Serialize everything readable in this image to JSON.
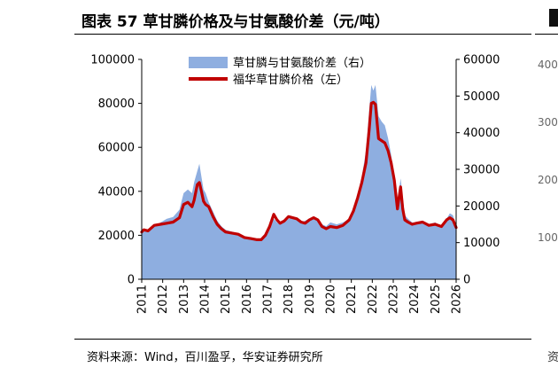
{
  "title": "图表 57 草甘膦价格及与甘氨酸价差（元/吨）",
  "source": "资料来源：Wind，百川盈孚，华安证券研究所",
  "colors": {
    "spread_fill": "#8eaee0",
    "price_line": "#c00000"
  },
  "neighbor": {
    "ticks": [
      "400",
      "300",
      "200",
      "100"
    ],
    "source_fragment": "资"
  },
  "chart_data": {
    "type": "area",
    "x_ticks": [
      "2011",
      "2012",
      "2013",
      "2014",
      "2015",
      "2016",
      "2017",
      "2018",
      "2019",
      "2020",
      "2021",
      "2022",
      "2023",
      "2024",
      "2025",
      "2026"
    ],
    "xlim": [
      2011,
      2026
    ],
    "y_left": {
      "ticks": [
        "0",
        "20000",
        "40000",
        "60000",
        "80000",
        "100000"
      ],
      "lim": [
        0,
        100000
      ]
    },
    "y_right": {
      "ticks": [
        "0",
        "10000",
        "20000",
        "30000",
        "40000",
        "50000",
        "60000"
      ],
      "lim": [
        0,
        60000
      ]
    },
    "grid": false,
    "legend_position": "top-center",
    "series": [
      {
        "name": "草甘膦与甘氨酸价差（右）",
        "kind": "area",
        "axis": "right",
        "x": [
          2011.0,
          2011.1,
          2011.3,
          2011.6,
          2011.9,
          2012.2,
          2012.5,
          2012.8,
          2013.0,
          2013.2,
          2013.4,
          2013.5,
          2013.65,
          2013.75,
          2013.85,
          2013.95,
          2014.05,
          2014.2,
          2014.4,
          2014.6,
          2014.8,
          2015.0,
          2015.3,
          2015.6,
          2015.9,
          2016.2,
          2016.5,
          2016.7,
          2016.9,
          2017.1,
          2017.3,
          2017.45,
          2017.6,
          2017.8,
          2018.0,
          2018.2,
          2018.4,
          2018.6,
          2018.8,
          2019.0,
          2019.2,
          2019.4,
          2019.6,
          2019.8,
          2020.0,
          2020.3,
          2020.6,
          2020.9,
          2021.1,
          2021.3,
          2021.5,
          2021.7,
          2021.85,
          2021.95,
          2022.05,
          2022.15,
          2022.3,
          2022.45,
          2022.6,
          2022.75,
          2022.9,
          2023.05,
          2023.2,
          2023.35,
          2023.45,
          2023.55,
          2023.7,
          2023.9,
          2024.1,
          2024.4,
          2024.7,
          2025.0,
          2025.3,
          2025.55,
          2025.7,
          2025.85,
          2026.0
        ],
        "values": [
          12500,
          13000,
          13500,
          14500,
          15500,
          16500,
          17000,
          19000,
          23500,
          24500,
          23500,
          26500,
          29500,
          31500,
          28000,
          24500,
          23500,
          21000,
          18500,
          16000,
          14500,
          13500,
          13000,
          12500,
          11500,
          11000,
          10500,
          10500,
          11500,
          13500,
          16500,
          15500,
          15000,
          15500,
          16500,
          17000,
          16500,
          15500,
          16000,
          16500,
          17000,
          16500,
          15000,
          14500,
          15500,
          15000,
          15500,
          16500,
          19000,
          23000,
          28000,
          35000,
          46000,
          53000,
          51500,
          53000,
          44500,
          43000,
          42000,
          38500,
          34000,
          28000,
          21000,
          27500,
          22500,
          17500,
          16500,
          15500,
          15500,
          16000,
          15000,
          15500,
          14500,
          16500,
          18000,
          17500,
          14500
        ]
      },
      {
        "name": "福华草甘膦价格（左）",
        "kind": "line",
        "axis": "left",
        "x": [
          2011.0,
          2011.1,
          2011.3,
          2011.6,
          2011.9,
          2012.2,
          2012.5,
          2012.8,
          2013.0,
          2013.2,
          2013.4,
          2013.5,
          2013.65,
          2013.75,
          2013.85,
          2013.95,
          2014.05,
          2014.2,
          2014.4,
          2014.6,
          2014.8,
          2015.0,
          2015.3,
          2015.6,
          2015.9,
          2016.2,
          2016.5,
          2016.7,
          2016.9,
          2017.1,
          2017.3,
          2017.45,
          2017.6,
          2017.8,
          2018.0,
          2018.2,
          2018.4,
          2018.6,
          2018.8,
          2019.0,
          2019.2,
          2019.4,
          2019.6,
          2019.8,
          2020.0,
          2020.3,
          2020.6,
          2020.9,
          2021.1,
          2021.3,
          2021.5,
          2021.7,
          2021.85,
          2021.95,
          2022.05,
          2022.15,
          2022.3,
          2022.45,
          2022.6,
          2022.75,
          2022.9,
          2023.05,
          2023.2,
          2023.35,
          2023.45,
          2023.55,
          2023.7,
          2023.9,
          2024.1,
          2024.4,
          2024.7,
          2025.0,
          2025.3,
          2025.55,
          2025.7,
          2025.85,
          2026.0
        ],
        "values": [
          21500,
          22500,
          22000,
          24500,
          25000,
          25500,
          26000,
          28000,
          34000,
          35000,
          33000,
          36000,
          43000,
          44000,
          40000,
          35500,
          34000,
          33000,
          28500,
          25000,
          23000,
          21500,
          21000,
          20500,
          19000,
          18500,
          18000,
          18000,
          20000,
          24000,
          29500,
          27000,
          25500,
          26500,
          28500,
          28000,
          27500,
          26000,
          25500,
          27000,
          28000,
          27000,
          24000,
          23000,
          24000,
          23500,
          24500,
          27000,
          31000,
          37000,
          44000,
          53000,
          68000,
          80000,
          80500,
          79500,
          64000,
          63000,
          62000,
          58500,
          53000,
          45000,
          32000,
          42000,
          32000,
          27000,
          26000,
          25000,
          25500,
          26000,
          24500,
          25000,
          24000,
          27000,
          28000,
          27000,
          23500
        ]
      }
    ]
  }
}
